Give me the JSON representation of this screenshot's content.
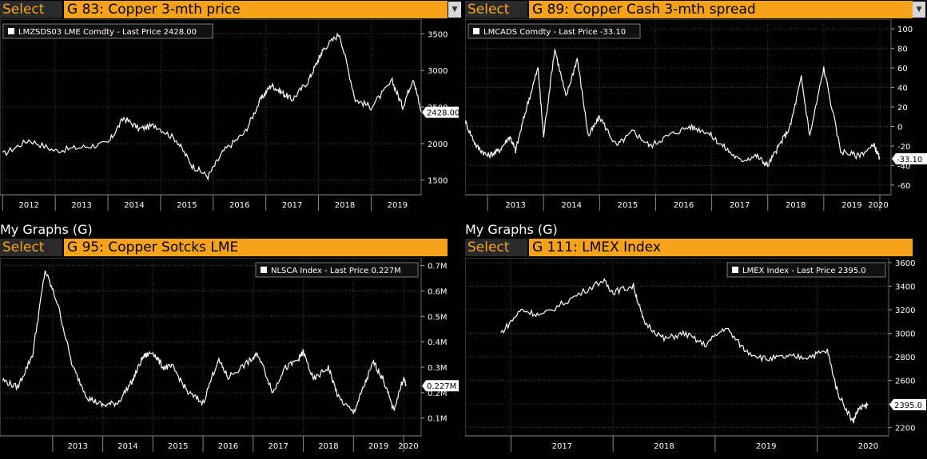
{
  "panels": [
    {
      "my_graphs": "",
      "select_label": "Select",
      "title": "G 83: Copper 3-mth price",
      "legend": "LMZSDS03 LME Comdty - Last Price 2428.00",
      "last_label": "2428.00"
    },
    {
      "my_graphs": "",
      "select_label": "Select",
      "title": "G 89: Copper Cash 3-mth spread",
      "legend": "LMCADS Comdty - Last Price -33.10",
      "last_label": "-33.10"
    },
    {
      "my_graphs": "My Graphs (G)",
      "select_label": "Select",
      "title": "G 95: Copper Sotcks LME",
      "legend": "NLSCA Index - Last Price 0.227M",
      "last_label": "0.227M"
    },
    {
      "my_graphs": "My Graphs (G)",
      "select_label": "Select",
      "title": "G 111: LMEX Index",
      "legend": "LMEX Index - Last Price 2395.0",
      "last_label": "2395.0"
    }
  ],
  "colors": {
    "accent": "#f7a21b",
    "line": "#ffffff",
    "grid": "#444444",
    "background": "#000000"
  },
  "chart_data": [
    {
      "type": "line",
      "series": [
        {
          "name": "LMZSDS03 LME Comdty",
          "x": [
            2012.0,
            2012.5,
            2013.0,
            2013.5,
            2014.0,
            2014.3,
            2014.6,
            2014.9,
            2015.3,
            2015.6,
            2015.9,
            2016.2,
            2016.6,
            2016.9,
            2017.1,
            2017.3,
            2017.5,
            2017.8,
            2018.0,
            2018.1,
            2018.4,
            2018.7,
            2019.0,
            2019.4,
            2019.6,
            2019.8,
            2019.95
          ],
          "y": [
            1850,
            2050,
            1900,
            1950,
            2000,
            2350,
            2200,
            2250,
            2050,
            1700,
            1550,
            1900,
            2150,
            2600,
            2800,
            2700,
            2600,
            2850,
            3150,
            3300,
            3500,
            2600,
            2500,
            2850,
            2500,
            2900,
            2428
          ]
        }
      ],
      "x_ticks": [
        "2012",
        "2013",
        "2014",
        "2015",
        "2016",
        "2017",
        "2018",
        "2019"
      ],
      "y_ticks": [
        "1500",
        "2000",
        "2500",
        "3000",
        "3500"
      ],
      "ylim": [
        1300,
        3700
      ],
      "legend_position": "top-left",
      "grid": true
    },
    {
      "type": "line",
      "series": [
        {
          "name": "LMCADS Comdty",
          "x": [
            2012.6,
            2012.8,
            2013.0,
            2013.2,
            2013.4,
            2013.5,
            2013.7,
            2013.9,
            2014.0,
            2014.2,
            2014.4,
            2014.6,
            2014.8,
            2015.0,
            2015.3,
            2015.6,
            2015.9,
            2016.2,
            2016.6,
            2016.9,
            2017.2,
            2017.5,
            2017.8,
            2018.0,
            2018.2,
            2018.4,
            2018.6,
            2018.75,
            2019.0,
            2019.3,
            2019.6,
            2019.9,
            2020.0
          ],
          "y": [
            5,
            -20,
            -30,
            -25,
            -10,
            -25,
            20,
            60,
            -10,
            80,
            30,
            70,
            -10,
            10,
            -20,
            -5,
            -20,
            -10,
            0,
            -5,
            -20,
            -35,
            -30,
            -40,
            -20,
            0,
            50,
            -10,
            60,
            -25,
            -30,
            -20,
            -33.1
          ]
        }
      ],
      "x_ticks": [
        "2013",
        "2014",
        "2015",
        "2016",
        "2017",
        "2018",
        "2019",
        "2020"
      ],
      "y_ticks": [
        "-60",
        "-40",
        "-20",
        "0",
        "20",
        "40",
        "60",
        "80",
        "100"
      ],
      "ylim": [
        -70,
        110
      ],
      "legend_position": "top-left",
      "grid": true
    },
    {
      "type": "line",
      "series": [
        {
          "name": "NLSCA Index",
          "x": [
            2012.0,
            2012.3,
            2012.6,
            2012.85,
            2013.1,
            2013.4,
            2013.7,
            2014.0,
            2014.3,
            2014.6,
            2014.8,
            2015.0,
            2015.2,
            2015.4,
            2015.7,
            2016.0,
            2016.3,
            2016.5,
            2016.9,
            2017.1,
            2017.4,
            2017.6,
            2017.9,
            2018.0,
            2018.2,
            2018.5,
            2018.7,
            2019.0,
            2019.2,
            2019.4,
            2019.6,
            2019.8,
            2020.0,
            2020.05
          ],
          "y": [
            0.25,
            0.22,
            0.35,
            0.68,
            0.55,
            0.3,
            0.18,
            0.15,
            0.16,
            0.25,
            0.34,
            0.36,
            0.3,
            0.3,
            0.2,
            0.16,
            0.33,
            0.26,
            0.32,
            0.35,
            0.2,
            0.29,
            0.33,
            0.36,
            0.25,
            0.3,
            0.18,
            0.12,
            0.22,
            0.32,
            0.25,
            0.13,
            0.26,
            0.227
          ]
        }
      ],
      "x_ticks": [
        "2013",
        "2014",
        "2015",
        "2016",
        "2017",
        "2018",
        "2019",
        "2020"
      ],
      "y_ticks": [
        "0.1M",
        "0.2M",
        "0.3M",
        "0.4M",
        "0.5M",
        "0.6M",
        "0.7M"
      ],
      "ylim": [
        0.03,
        0.73
      ],
      "legend_position": "top-right",
      "grid": true
    },
    {
      "type": "line",
      "series": [
        {
          "name": "LMEX Index",
          "x": [
            2016.9,
            2017.1,
            2017.3,
            2017.6,
            2017.9,
            2018.0,
            2018.2,
            2018.3,
            2018.5,
            2018.7,
            2018.9,
            2019.1,
            2019.3,
            2019.5,
            2019.7,
            2019.9,
            2020.1,
            2020.2,
            2020.35,
            2020.4,
            2020.5
          ],
          "y": [
            3000,
            3200,
            3150,
            3300,
            3450,
            3350,
            3400,
            3100,
            2950,
            3000,
            2900,
            3050,
            2850,
            2780,
            2800,
            2800,
            2850,
            2500,
            2250,
            2350,
            2395
          ]
        }
      ],
      "x_ticks": [
        "2017",
        "2018",
        "2019",
        "2020"
      ],
      "y_ticks": [
        "2200",
        "2400",
        "2600",
        "2800",
        "3000",
        "3200",
        "3400",
        "3600"
      ],
      "ylim": [
        2130,
        3640
      ],
      "legend_position": "top-right",
      "grid": true
    }
  ]
}
